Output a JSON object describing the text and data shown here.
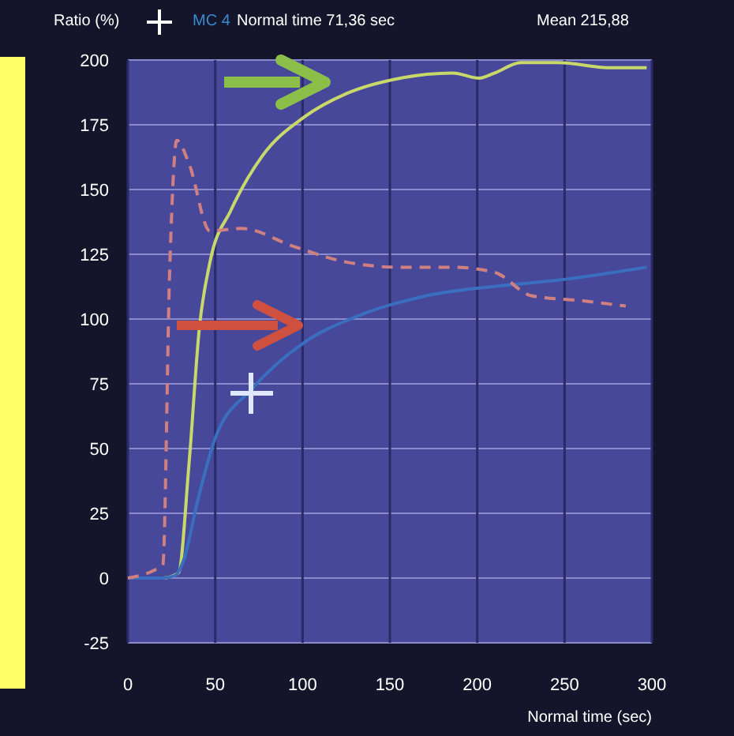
{
  "chart_data": {
    "type": "line",
    "xlabel": "Normal time (sec)",
    "ylabel": "Ratio (%)",
    "annotations": [
      "MC 4",
      "Normal time  71,36 sec",
      "Mean  215,88"
    ],
    "xlim": [
      0,
      300
    ],
    "xticks": [
      0,
      50,
      100,
      150,
      200,
      250,
      300
    ],
    "ylim": [
      -25,
      200
    ],
    "yticks": [
      -25,
      0,
      25,
      50,
      75,
      100,
      125,
      150,
      175,
      200
    ],
    "grid": true,
    "series": [
      {
        "color": "#c8d86a",
        "line_style": "solid",
        "x": [
          0,
          20,
          29,
          35,
          41,
          47,
          59,
          77,
          101,
          125,
          156,
          186,
          201,
          210,
          225,
          246,
          276,
          297
        ],
        "values": [
          0,
          0,
          2,
          44,
          97,
          122,
          142,
          163,
          178,
          187,
          193,
          195,
          193,
          195,
          199,
          199,
          197,
          197
        ]
      },
      {
        "color": "#3a6fc0",
        "line_style": "solid",
        "x": [
          0,
          20,
          27,
          32,
          40,
          50,
          71,
          101,
          131,
          171,
          216,
          246,
          297
        ],
        "values": [
          0,
          0,
          1,
          7,
          30,
          54,
          73,
          91,
          101,
          109,
          113,
          115,
          120
        ]
      },
      {
        "color": "#d08080",
        "line_style": "dashed",
        "x": [
          0,
          15,
          20,
          24,
          28,
          35,
          47,
          65,
          95,
          125,
          156,
          186,
          210,
          231,
          261,
          285
        ],
        "values": [
          0,
          3,
          5,
          120,
          169,
          160,
          134,
          135,
          128,
          122,
          120,
          120,
          118,
          109,
          107,
          105
        ]
      }
    ]
  }
}
